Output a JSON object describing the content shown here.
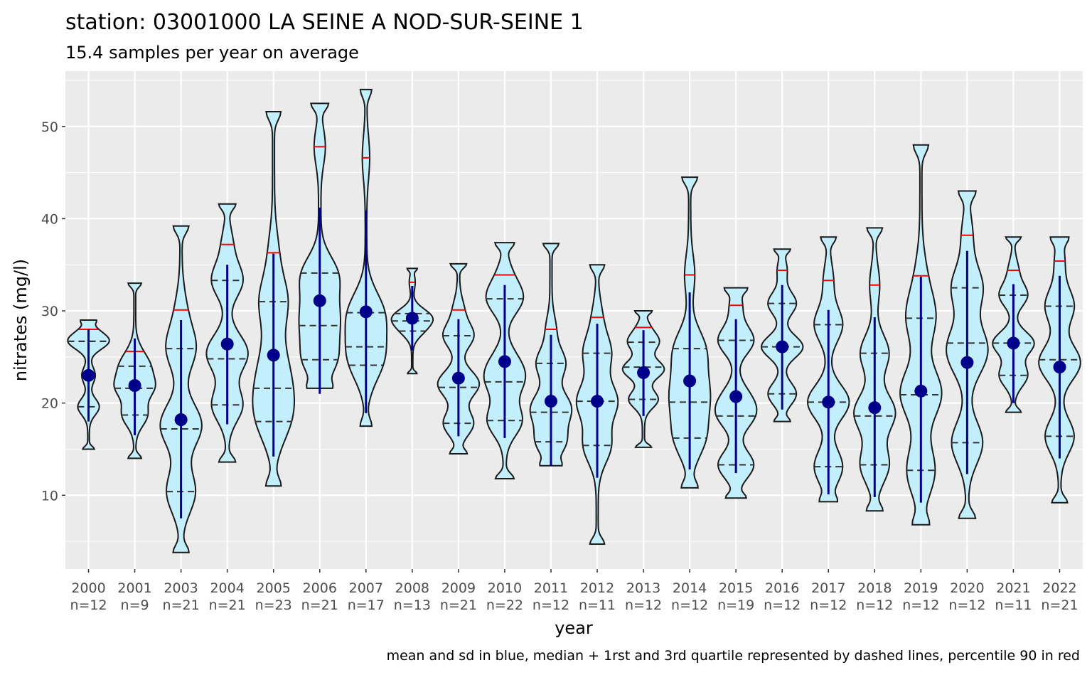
{
  "chart_data": {
    "type": "violin",
    "title": "station: 03001000 LA SEINE A NOD-SUR-SEINE 1",
    "subtitle": "15.4 samples per year on average",
    "xlabel": "year",
    "ylabel": "nitrates (mg/l)",
    "caption": "mean and sd in blue, median + 1rst and 3rd quartile represented by dashed lines,  percentile 90 in red",
    "ylim": [
      2,
      56
    ],
    "y_ticks": [
      10,
      20,
      30,
      40,
      50
    ],
    "grid": true,
    "colors": {
      "panel": "#ebebeb",
      "violin_fill": "#c3eefc",
      "violin_outline": "#1a1a1a",
      "mean_sd": "#00008b",
      "p90": "#ff0000",
      "quartiles": "#333333"
    },
    "categories": [
      {
        "year": "2000",
        "n": "n=12",
        "min": 15.0,
        "max": 29.0,
        "mean": 23.0,
        "sd_low": 18.0,
        "sd_high": 28.0,
        "median": 26.7,
        "q1": 19.6,
        "q3": 26.7,
        "p90": 28.0
      },
      {
        "year": "2001",
        "n": "n=9",
        "min": 14.0,
        "max": 33.0,
        "mean": 21.9,
        "sd_low": 16.5,
        "sd_high": 27.0,
        "median": 21.6,
        "q1": 18.7,
        "q3": 24.0,
        "p90": 25.6
      },
      {
        "year": "2003",
        "n": "n=21",
        "min": 3.8,
        "max": 39.2,
        "mean": 18.2,
        "sd_low": 7.5,
        "sd_high": 29.0,
        "median": 17.2,
        "q1": 10.4,
        "q3": 25.9,
        "p90": 30.1
      },
      {
        "year": "2004",
        "n": "n=21",
        "min": 13.6,
        "max": 41.6,
        "mean": 26.4,
        "sd_low": 17.7,
        "sd_high": 35.0,
        "median": 24.8,
        "q1": 19.8,
        "q3": 33.3,
        "p90": 37.2
      },
      {
        "year": "2005",
        "n": "n=23",
        "min": 11.0,
        "max": 51.6,
        "mean": 25.2,
        "sd_low": 14.2,
        "sd_high": 36.2,
        "median": 21.6,
        "q1": 18.0,
        "q3": 31.0,
        "p90": 36.3
      },
      {
        "year": "2006",
        "n": "n=21",
        "min": 21.6,
        "max": 52.5,
        "mean": 31.1,
        "sd_low": 21.0,
        "sd_high": 41.2,
        "median": 28.4,
        "q1": 24.7,
        "q3": 34.1,
        "p90": 47.8
      },
      {
        "year": "2007",
        "n": "n=17",
        "min": 17.5,
        "max": 54.0,
        "mean": 29.9,
        "sd_low": 18.9,
        "sd_high": 40.9,
        "median": 26.1,
        "q1": 24.1,
        "q3": 29.8,
        "p90": 46.6
      },
      {
        "year": "2008",
        "n": "n=13",
        "min": 23.2,
        "max": 34.6,
        "mean": 29.2,
        "sd_low": 25.7,
        "sd_high": 32.7,
        "median": 28.9,
        "q1": 27.8,
        "q3": 29.7,
        "p90": 33.1
      },
      {
        "year": "2009",
        "n": "n=21",
        "min": 14.5,
        "max": 35.1,
        "mean": 22.7,
        "sd_low": 16.4,
        "sd_high": 29.1,
        "median": 21.7,
        "q1": 17.8,
        "q3": 27.3,
        "p90": 30.1
      },
      {
        "year": "2010",
        "n": "n=22",
        "min": 11.8,
        "max": 37.4,
        "mean": 24.5,
        "sd_low": 16.2,
        "sd_high": 32.8,
        "median": 22.3,
        "q1": 18.1,
        "q3": 31.3,
        "p90": 33.9
      },
      {
        "year": "2011",
        "n": "n=12",
        "min": 13.2,
        "max": 37.3,
        "mean": 20.2,
        "sd_low": 13.2,
        "sd_high": 27.4,
        "median": 19.0,
        "q1": 15.8,
        "q3": 24.3,
        "p90": 28.0
      },
      {
        "year": "2012",
        "n": "n=11",
        "min": 4.7,
        "max": 35.0,
        "mean": 20.2,
        "sd_low": 11.9,
        "sd_high": 28.6,
        "median": 20.2,
        "q1": 15.4,
        "q3": 25.4,
        "p90": 29.3
      },
      {
        "year": "2013",
        "n": "n=12",
        "min": 15.2,
        "max": 30.0,
        "mean": 23.3,
        "sd_low": 18.6,
        "sd_high": 27.9,
        "median": 23.9,
        "q1": 20.4,
        "q3": 26.6,
        "p90": 28.2
      },
      {
        "year": "2014",
        "n": "n=12",
        "min": 10.8,
        "max": 44.5,
        "mean": 22.4,
        "sd_low": 12.8,
        "sd_high": 32.0,
        "median": 20.1,
        "q1": 16.2,
        "q3": 25.9,
        "p90": 33.9
      },
      {
        "year": "2015",
        "n": "n=19",
        "min": 9.7,
        "max": 32.5,
        "mean": 20.7,
        "sd_low": 12.4,
        "sd_high": 29.1,
        "median": 18.6,
        "q1": 13.3,
        "q3": 26.8,
        "p90": 30.6
      },
      {
        "year": "2016",
        "n": "n=12",
        "min": 18.0,
        "max": 36.7,
        "mean": 26.1,
        "sd_low": 19.3,
        "sd_high": 32.8,
        "median": 26.1,
        "q1": 21.0,
        "q3": 30.8,
        "p90": 34.4
      },
      {
        "year": "2017",
        "n": "n=12",
        "min": 9.3,
        "max": 38.0,
        "mean": 20.1,
        "sd_low": 10.1,
        "sd_high": 30.1,
        "median": 20.1,
        "q1": 13.1,
        "q3": 28.5,
        "p90": 33.3
      },
      {
        "year": "2018",
        "n": "n=12",
        "min": 8.3,
        "max": 39.0,
        "mean": 19.5,
        "sd_low": 9.8,
        "sd_high": 29.3,
        "median": 18.6,
        "q1": 13.3,
        "q3": 25.4,
        "p90": 32.8
      },
      {
        "year": "2019",
        "n": "n=12",
        "min": 6.8,
        "max": 48.0,
        "mean": 21.3,
        "sd_low": 9.2,
        "sd_high": 33.7,
        "median": 20.9,
        "q1": 12.7,
        "q3": 29.2,
        "p90": 33.8
      },
      {
        "year": "2020",
        "n": "n=12",
        "min": 7.5,
        "max": 43.0,
        "mean": 24.4,
        "sd_low": 12.3,
        "sd_high": 36.5,
        "median": 26.5,
        "q1": 15.7,
        "q3": 32.5,
        "p90": 38.2
      },
      {
        "year": "2021",
        "n": "n=11",
        "min": 19.0,
        "max": 38.0,
        "mean": 26.5,
        "sd_low": 20.0,
        "sd_high": 32.9,
        "median": 26.5,
        "q1": 23.0,
        "q3": 31.7,
        "p90": 34.4
      },
      {
        "year": "2022",
        "n": "n=21",
        "min": 9.2,
        "max": 38.0,
        "mean": 23.9,
        "sd_low": 14.0,
        "sd_high": 33.8,
        "median": 24.7,
        "q1": 16.4,
        "q3": 30.5,
        "p90": 35.4
      }
    ]
  }
}
